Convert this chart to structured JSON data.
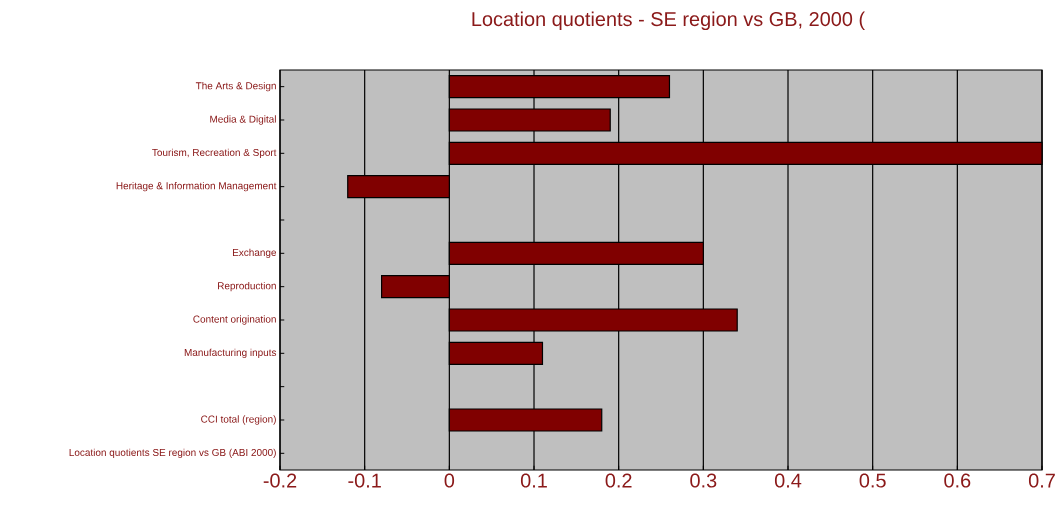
{
  "chart_data": {
    "type": "bar",
    "orientation": "horizontal",
    "title": "Location quotients - SE region vs GB, 2000 (",
    "categories": [
      "The Arts & Design",
      "Media & Digital",
      "Tourism, Recreation & Sport",
      "Heritage & Information Management",
      null,
      "Exchange",
      "Reproduction",
      "Content origination",
      "Manufacturing inputs",
      null,
      "CCI total (region)",
      "Location quotients SE region vs GB (ABI 2000)"
    ],
    "values": [
      0.26,
      0.19,
      0.7,
      -0.12,
      null,
      0.3,
      -0.08,
      0.34,
      0.11,
      null,
      0.18,
      null
    ],
    "color": "#800000",
    "xlim": [
      -0.2,
      0.7
    ],
    "xticks": [
      -0.2,
      -0.1,
      0,
      0.1,
      0.2,
      0.3,
      0.4,
      0.5,
      0.6,
      0.7
    ],
    "grid": "x"
  }
}
